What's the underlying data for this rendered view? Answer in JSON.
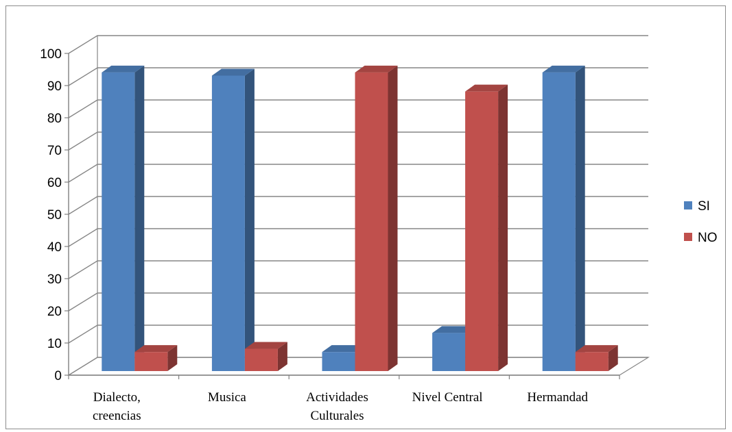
{
  "chart_data": {
    "type": "bar",
    "categories": [
      [
        "Dialecto,",
        "creencias"
      ],
      [
        "Musica"
      ],
      [
        "Actividades",
        "Culturales"
      ],
      [
        "Nivel Central"
      ],
      [
        "Hermandad"
      ]
    ],
    "series": [
      {
        "name": "SI",
        "values": [
          94,
          93,
          6,
          12,
          94
        ],
        "color": "#4f81bd"
      },
      {
        "name": "NO",
        "values": [
          6,
          7,
          94,
          88,
          6
        ],
        "color": "#c0504d"
      }
    ],
    "title": "",
    "xlabel": "",
    "ylabel": "",
    "ylim": [
      0,
      100
    ],
    "yticks": [
      "0",
      "10",
      "20",
      "30",
      "40",
      "50",
      "60",
      "70",
      "80",
      "90",
      "100"
    ],
    "grid": true,
    "legend_position": "right",
    "style": "3d-clustered-column"
  }
}
